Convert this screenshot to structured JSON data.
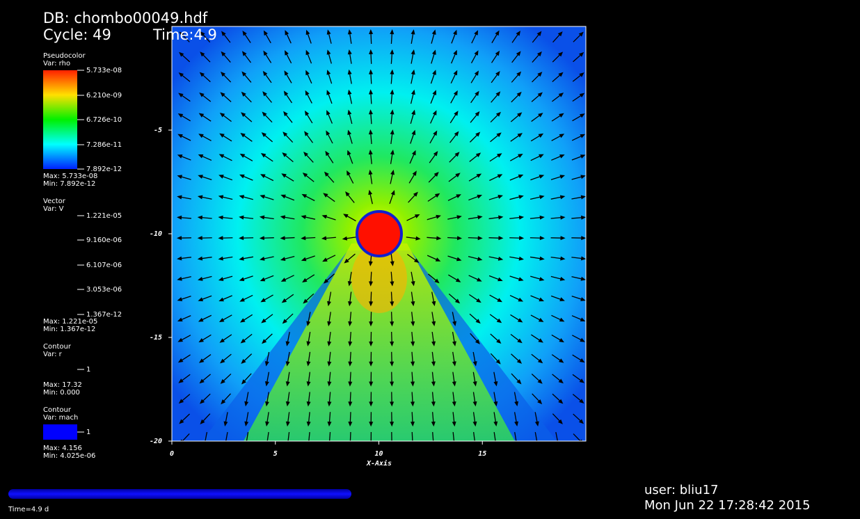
{
  "header": {
    "db": "DB: chombo00049.hdf",
    "cycle": "Cycle: 49",
    "time": "Time:4.9"
  },
  "legends": [
    {
      "title": "Pseudocolor",
      "var": "Var: rho",
      "labels": [
        "5.733e-08",
        "6.210e-09",
        "6.726e-10",
        "7.286e-11",
        "7.892e-12"
      ],
      "max": "Max: 5.733e-08",
      "min": "Min: 7.892e-12"
    },
    {
      "title": "Vector",
      "var": "Var: V",
      "labels": [
        "1.221e-05",
        "9.160e-06",
        "6.107e-06",
        "3.053e-06",
        "1.367e-12"
      ],
      "max": "Max:  1.221e-05",
      "min": "Min:  1.367e-12"
    },
    {
      "title": "Contour",
      "var": "Var: r",
      "labels": [
        "1"
      ],
      "max": "Max:  17.32",
      "min": "Min:  0.000"
    },
    {
      "title": "Contour",
      "var": "Var: mach",
      "labels": [
        "1"
      ],
      "max": "Max:  4.156",
      "min": "Min:  4.025e-06"
    }
  ],
  "plot": {
    "x_label": "X-Axis",
    "xlim": [
      0,
      20
    ],
    "ylim": [
      -20,
      0
    ],
    "xticks": [
      0,
      5,
      10,
      15
    ],
    "yticks": [
      -5,
      -10,
      -15,
      -20
    ]
  },
  "footer": {
    "time": "Time=4.9 d",
    "user": "user: bliu17",
    "date": "Mon Jun 22 17:28:42 2015"
  }
}
